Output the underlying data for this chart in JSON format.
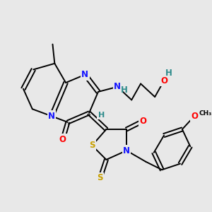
{
  "bg_color": "#e8e8e8",
  "atom_colors": {
    "N": "#1414ff",
    "O": "#ff0000",
    "S": "#c8a000",
    "H": "#2d8b8b",
    "C": "#000000"
  },
  "fs": 8.5
}
